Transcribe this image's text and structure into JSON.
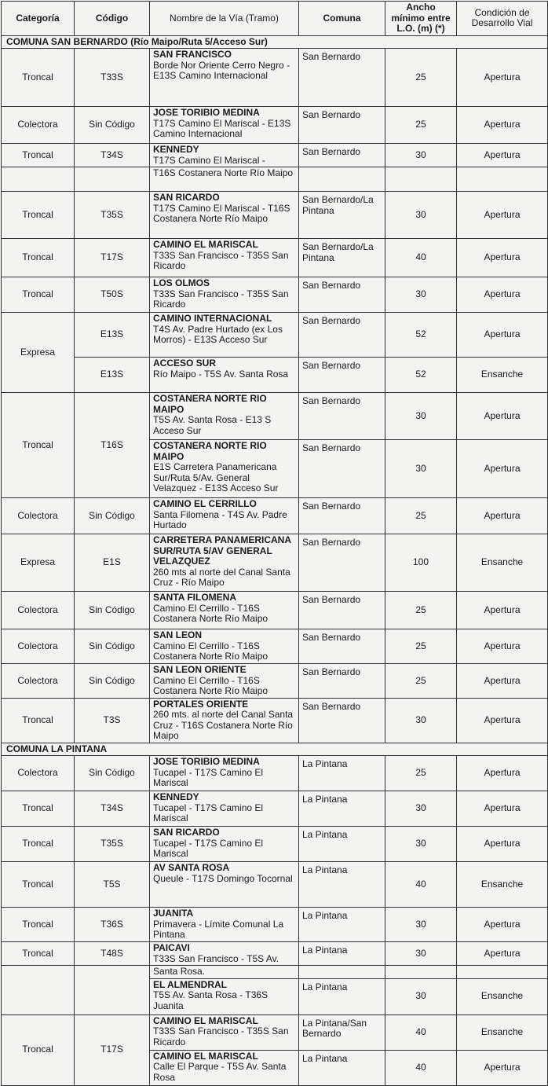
{
  "header": {
    "categoria": "Categoría",
    "codigo": "Código",
    "nombre": "Nombre de la Vía (Tramo)",
    "comuna": "Comuna",
    "ancho": "Ancho mínimo entre L.O. (m) (*)",
    "condicion": "Condición de Desarrollo Vial"
  },
  "sections": {
    "san_bernardo": "COMUNA SAN BERNARDO (Río Maipo/Ruta 5/Acceso Sur)",
    "la_pintana": "COMUNA LA PINTANA"
  },
  "rows": [
    {
      "cat": "Troncal",
      "code": "T33S",
      "name": "SAN FRANCISCO",
      "desc": "Borde Nor Oriente Cerro Negro - E13S Camino Internacional",
      "comuna": "San Bernardo",
      "ancho": "25",
      "cond": "Apertura"
    },
    {
      "cat": "Colectora",
      "code": "Sin Código",
      "name": "JOSE TORIBIO MEDINA",
      "desc": "T17S Camino El Mariscal - E13S Camino Internacional",
      "comuna": "San Bernardo",
      "ancho": "25",
      "cond": "Apertura"
    },
    {
      "cat": "Troncal",
      "code": "T34S",
      "name": "KENNEDY",
      "desc": "T17S Camino El Mariscal -",
      "comuna": "San Bernardo",
      "ancho": "30",
      "cond": "Apertura"
    },
    {
      "cat": "",
      "code": "",
      "name": "",
      "desc": "T16S Costanera Norte Río Maipo",
      "comuna": "",
      "ancho": "",
      "cond": ""
    },
    {
      "cat": "Troncal",
      "code": "T35S",
      "name": "SAN RICARDO",
      "desc": "T17S Camino El Mariscal - T16S Costanera Norte Río Maipo",
      "comuna": "San Bernardo/La Pintana",
      "ancho": "30",
      "cond": "Apertura"
    },
    {
      "cat": "Troncal",
      "code": "T17S",
      "name": "CAMINO EL MARISCAL",
      "desc": "T33S San Francisco - T35S San Ricardo",
      "comuna": "San Bernardo/La Pintana",
      "ancho": "40",
      "cond": "Apertura"
    },
    {
      "cat": "Troncal",
      "code": "T50S",
      "name": "LOS OLMOS",
      "desc": "T33S San Francisco - T35S San Ricardo",
      "comuna": "San Bernardo",
      "ancho": "30",
      "cond": "Apertura"
    },
    {
      "cat": "Expresa",
      "code": "E13S",
      "name": "CAMINO INTERNACIONAL",
      "desc": "T4S Av. Padre Hurtado (ex Los Morros) - E13S Acceso Sur",
      "comuna": "San Bernardo",
      "ancho": "52",
      "cond": "Apertura"
    },
    {
      "cat": "",
      "code": "E13S",
      "name": "ACCESO SUR",
      "desc": "Río Maipo - T5S Av. Santa Rosa",
      "comuna": "San Bernardo",
      "ancho": "52",
      "cond": "Ensanche"
    },
    {
      "cat": "Troncal",
      "code": "T16S",
      "name": "COSTANERA NORTE RIO MAIPO",
      "desc": "T5S Av. Santa Rosa - E13 S Acceso Sur",
      "comuna": "San Bernardo",
      "ancho": "30",
      "cond": "Apertura"
    },
    {
      "cat": "",
      "code": "",
      "name": "COSTANERA NORTE RIO MAIPO",
      "desc": "E1S Carretera Panamericana Sur/Ruta 5/Av. General Velazquez - E13S Acceso Sur",
      "comuna": "San Bernardo",
      "ancho": "30",
      "cond": "Apertura"
    },
    {
      "cat": "Colectora",
      "code": "Sin Código",
      "name": "CAMINO EL CERRILLO",
      "desc": "Santa Filomena  - T4S Av. Padre Hurtado",
      "comuna": "San Bernardo",
      "ancho": "25",
      "cond": "Apertura"
    },
    {
      "cat": "Expresa",
      "code": "E1S",
      "name": "CARRETERA PANAMERICANA SUR/RUTA 5/AV GENERAL VELAZQUEZ",
      "desc": "260 mts al norte del Canal Santa Cruz - Río Maipo",
      "comuna": "San Bernardo",
      "ancho": "100",
      "cond": "Ensanche"
    },
    {
      "cat": "Colectora",
      "code": "Sin Código",
      "name": "SANTA FILOMENA",
      "desc": "Camino El Cerrillo - T16S Costanera Norte Río Maipo",
      "comuna": "San Bernardo",
      "ancho": "25",
      "cond": "Apertura"
    },
    {
      "cat": "Colectora",
      "code": "Sin Código",
      "name": "SAN LEON",
      "desc": "Camino El Cerrillo - T16S Costanera Norte Río Maipo",
      "comuna": "San Bernardo",
      "ancho": "25",
      "cond": "Apertura"
    },
    {
      "cat": "Colectora",
      "code": "Sin Código",
      "name": "SAN LEON ORIENTE",
      "desc": "Camino El Cerrillo - T16S Costanera Norte Río Maipo",
      "comuna": "San Bernardo",
      "ancho": "25",
      "cond": "Apertura"
    },
    {
      "cat": "Troncal",
      "code": "T3S",
      "name": "PORTALES ORIENTE",
      "desc": "260 mts. al norte del Canal Santa Cruz - T16S Costanera Norte Río Maipo",
      "comuna": "San Bernardo",
      "ancho": "30",
      "cond": "Apertura"
    },
    {
      "cat": "Colectora",
      "code": "Sin Código",
      "name": "JOSE TORIBIO MEDINA",
      "desc": "Tucapel - T17S Camino El Mariscal",
      "comuna": "La Pintana",
      "ancho": "25",
      "cond": "Apertura"
    },
    {
      "cat": "Troncal",
      "code": "T34S",
      "name": "KENNEDY",
      "desc": "Tucapel - T17S Camino El Mariscal",
      "comuna": "La Pintana",
      "ancho": "30",
      "cond": "Apertura"
    },
    {
      "cat": "Troncal",
      "code": "T35S",
      "name": "SAN RICARDO",
      "desc": "Tucapel - T17S Camino El Mariscal",
      "comuna": "La Pintana",
      "ancho": "30",
      "cond": "Apertura"
    },
    {
      "cat": "Troncal",
      "code": "T5S",
      "name": "AV SANTA ROSA",
      "desc": "Queule - T17S Domingo Tocornal",
      "comuna": "La Pintana",
      "ancho": "40",
      "cond": "Ensanche"
    },
    {
      "cat": "Troncal",
      "code": "T36S",
      "name": "JUANITA",
      "desc": "Primavera - Límite Comunal La Pintana",
      "comuna": "La Pintana",
      "ancho": "30",
      "cond": "Apertura"
    },
    {
      "cat": "Troncal",
      "code": "T48S",
      "name": "PAICAVI",
      "desc": "T33S San Francisco - T5S Av.",
      "comuna": "La Pintana",
      "ancho": "30",
      "cond": "Apertura"
    },
    {
      "cat": "",
      "code": "",
      "name": "",
      "desc": "Santa Rosa.",
      "comuna": "",
      "ancho": "",
      "cond": ""
    },
    {
      "cat": "",
      "code": "",
      "name": "EL ALMENDRAL",
      "desc": "T5S Av. Santa Rosa - T36S Juanita",
      "comuna": "La Pintana",
      "ancho": "30",
      "cond": "Ensanche"
    },
    {
      "cat": "Troncal",
      "code": "T17S",
      "name": "CAMINO EL MARISCAL",
      "desc": "T33S San Francisco - T35S San Ricardo",
      "comuna": "La Pintana/San Bernardo",
      "ancho": "40",
      "cond": "Ensanche"
    },
    {
      "cat": "",
      "code": "",
      "name": "CAMINO EL MARISCAL",
      "desc": "Calle El Parque - T5S Av. Santa Rosa",
      "comuna": "La Pintana",
      "ancho": "40",
      "cond": "Apertura"
    }
  ]
}
